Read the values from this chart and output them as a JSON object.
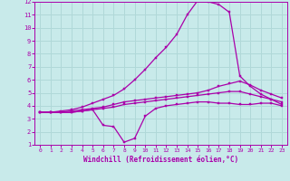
{
  "xlabel": "Windchill (Refroidissement éolien,°C)",
  "xlim": [
    -0.5,
    23.5
  ],
  "ylim": [
    1,
    12
  ],
  "xticks": [
    0,
    1,
    2,
    3,
    4,
    5,
    6,
    7,
    8,
    9,
    10,
    11,
    12,
    13,
    14,
    15,
    16,
    17,
    18,
    19,
    20,
    21,
    22,
    23
  ],
  "yticks": [
    1,
    2,
    3,
    4,
    5,
    6,
    7,
    8,
    9,
    10,
    11,
    12
  ],
  "bg_color": "#c8eaea",
  "line_color": "#aa00aa",
  "grid_color": "#b0d8d8",
  "curve1_x": [
    0,
    1,
    2,
    3,
    4,
    5,
    6,
    7,
    8,
    9,
    10,
    11,
    12,
    13,
    14,
    15,
    16,
    17,
    18,
    19,
    20,
    21,
    22,
    23
  ],
  "curve1_y": [
    3.5,
    3.5,
    3.6,
    3.7,
    3.9,
    4.2,
    4.5,
    4.8,
    5.3,
    6.0,
    6.8,
    7.7,
    8.5,
    9.5,
    11.0,
    12.1,
    12.0,
    11.8,
    11.2,
    6.3,
    5.5,
    4.9,
    4.5,
    4.1
  ],
  "curve2_x": [
    0,
    1,
    2,
    3,
    4,
    5,
    6,
    7,
    8,
    9,
    10,
    11,
    12,
    13,
    14,
    15,
    16,
    17,
    18,
    19,
    20,
    21,
    22,
    23
  ],
  "curve2_y": [
    3.5,
    3.5,
    3.5,
    3.6,
    3.7,
    3.8,
    3.9,
    4.1,
    4.3,
    4.4,
    4.5,
    4.6,
    4.7,
    4.8,
    4.9,
    5.0,
    5.2,
    5.5,
    5.7,
    5.9,
    5.6,
    5.2,
    4.9,
    4.6
  ],
  "curve3_x": [
    0,
    1,
    2,
    3,
    4,
    5,
    6,
    7,
    8,
    9,
    10,
    11,
    12,
    13,
    14,
    15,
    16,
    17,
    18,
    19,
    20,
    21,
    22,
    23
  ],
  "curve3_y": [
    3.5,
    3.5,
    3.5,
    3.5,
    3.6,
    3.7,
    2.5,
    2.4,
    1.2,
    1.5,
    3.2,
    3.8,
    4.0,
    4.1,
    4.2,
    4.3,
    4.3,
    4.2,
    4.2,
    4.1,
    4.1,
    4.2,
    4.2,
    4.0
  ],
  "curve4_x": [
    0,
    1,
    2,
    3,
    4,
    5,
    6,
    7,
    8,
    9,
    10,
    11,
    12,
    13,
    14,
    15,
    16,
    17,
    18,
    19,
    20,
    21,
    22,
    23
  ],
  "curve4_y": [
    3.5,
    3.5,
    3.5,
    3.5,
    3.6,
    3.7,
    3.8,
    3.9,
    4.1,
    4.2,
    4.3,
    4.4,
    4.5,
    4.6,
    4.7,
    4.8,
    4.9,
    5.0,
    5.1,
    5.1,
    4.9,
    4.7,
    4.5,
    4.3
  ]
}
